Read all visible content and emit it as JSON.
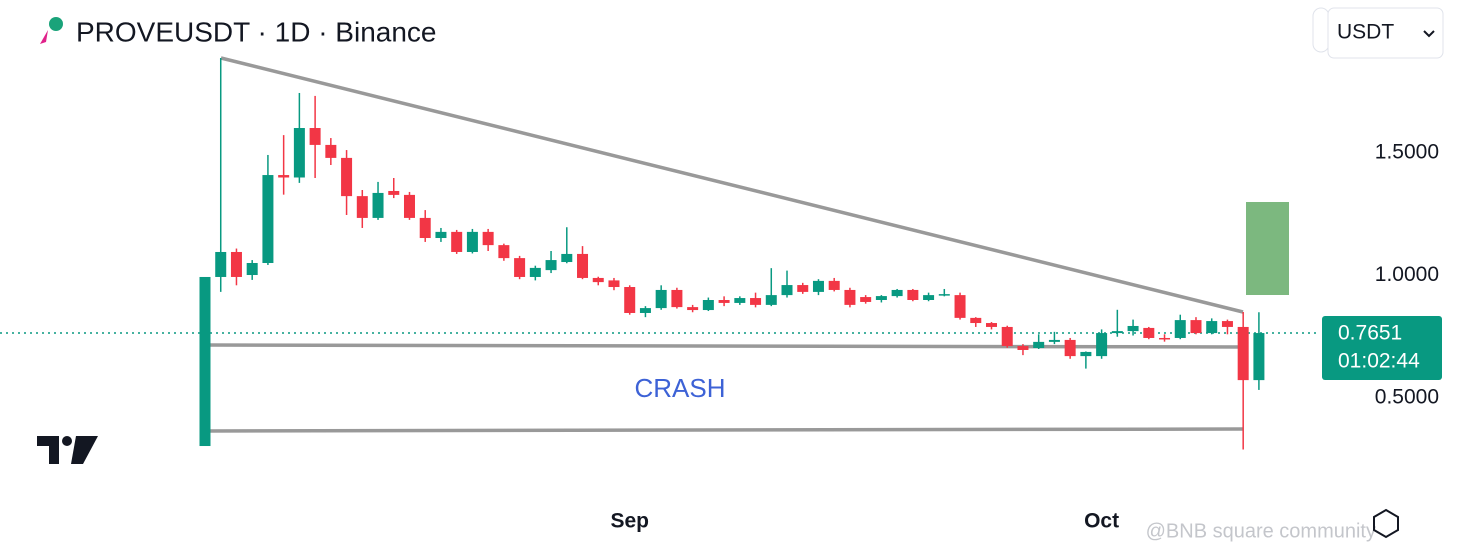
{
  "chart_data": {
    "type": "candlestick",
    "title": "PROVEUSDT · 1D · Binance",
    "currency": "USDT",
    "annotation": "CRASH",
    "last_price": 0.7651,
    "countdown": "01:02:44",
    "watermark": "@BNB square community",
    "up_color": "#089981",
    "down_color": "#f23645",
    "categories": [
      null,
      null,
      null,
      null,
      null,
      null,
      null,
      null,
      null,
      null,
      null,
      null,
      null,
      null,
      null,
      null,
      null,
      null,
      null,
      null,
      null,
      null,
      null,
      null,
      null,
      null,
      null,
      "Sep",
      null,
      null,
      null,
      null,
      null,
      null,
      null,
      null,
      null,
      null,
      null,
      null,
      null,
      null,
      null,
      null,
      null,
      null,
      null,
      null,
      null,
      null,
      null,
      null,
      null,
      null,
      null,
      null,
      null,
      "Oct",
      null,
      null,
      null,
      null,
      null,
      null,
      null,
      null,
      null,
      null
    ],
    "open": [
      0.304,
      0.994,
      1.096,
      1.002,
      1.051,
      1.41,
      1.4,
      1.602,
      1.533,
      1.48,
      1.324,
      1.235,
      1.345,
      1.329,
      1.235,
      1.153,
      1.178,
      1.096,
      1.178,
      1.124,
      1.071,
      0.994,
      1.022,
      1.055,
      1.088,
      0.99,
      0.98,
      0.953,
      0.847,
      0.867,
      0.941,
      0.871,
      0.859,
      0.9,
      0.888,
      0.908,
      0.88,
      0.92,
      0.961,
      0.933,
      0.978,
      0.941,
      0.912,
      0.9,
      0.916,
      0.941,
      0.9,
      0.92,
      0.92,
      0.827,
      0.806,
      0.79,
      0.712,
      0.704,
      0.729,
      0.737,
      0.671,
      0.671,
      0.765,
      0.773,
      0.786,
      0.745,
      0.745,
      0.818,
      0.765,
      0.814,
      0.79,
      0.573
    ],
    "high": [
      0.994,
      1.888,
      1.11,
      1.063,
      1.492,
      1.573,
      1.745,
      1.733,
      1.561,
      1.512,
      1.349,
      1.382,
      1.398,
      1.341,
      1.267,
      1.194,
      1.186,
      1.19,
      1.19,
      1.13,
      1.08,
      1.04,
      1.1,
      1.197,
      1.12,
      0.995,
      0.99,
      0.96,
      0.875,
      0.96,
      0.95,
      0.88,
      0.91,
      0.915,
      0.915,
      0.93,
      1.03,
      1.02,
      0.97,
      0.985,
      0.99,
      0.95,
      0.92,
      0.92,
      0.945,
      0.945,
      0.93,
      0.945,
      0.93,
      0.83,
      0.81,
      0.795,
      0.72,
      0.76,
      0.77,
      0.745,
      0.69,
      0.78,
      0.86,
      0.82,
      0.79,
      0.76,
      0.84,
      0.83,
      0.825,
      0.82,
      0.851,
      0.85
    ],
    "low": [
      0.304,
      0.933,
      0.96,
      0.982,
      1.043,
      1.33,
      1.378,
      1.398,
      1.451,
      1.247,
      1.194,
      1.227,
      1.316,
      1.227,
      1.137,
      1.137,
      1.088,
      1.09,
      1.1,
      1.06,
      0.985,
      0.98,
      1.01,
      1.05,
      0.985,
      0.96,
      0.94,
      0.84,
      0.83,
      0.86,
      0.865,
      0.85,
      0.855,
      0.875,
      0.88,
      0.87,
      0.875,
      0.91,
      0.925,
      0.92,
      0.935,
      0.87,
      0.885,
      0.89,
      0.91,
      0.895,
      0.895,
      0.915,
      0.82,
      0.79,
      0.78,
      0.705,
      0.675,
      0.7,
      0.72,
      0.66,
      0.62,
      0.66,
      0.75,
      0.755,
      0.74,
      0.73,
      0.74,
      0.76,
      0.76,
      0.76,
      0.29,
      0.533
    ],
    "close": [
      0.994,
      1.096,
      0.994,
      1.051,
      1.41,
      1.4,
      1.602,
      1.533,
      1.48,
      1.324,
      1.235,
      1.337,
      1.329,
      1.235,
      1.153,
      1.178,
      1.096,
      1.178,
      1.124,
      1.071,
      0.994,
      1.031,
      1.063,
      1.088,
      0.99,
      0.973,
      0.953,
      0.847,
      0.867,
      0.941,
      0.871,
      0.859,
      0.9,
      0.888,
      0.908,
      0.88,
      0.92,
      0.961,
      0.933,
      0.978,
      0.941,
      0.88,
      0.892,
      0.916,
      0.941,
      0.9,
      0.92,
      0.924,
      0.827,
      0.806,
      0.79,
      0.712,
      0.696,
      0.729,
      0.737,
      0.671,
      0.688,
      0.765,
      0.773,
      0.794,
      0.745,
      0.741,
      0.818,
      0.765,
      0.814,
      0.79,
      0.573,
      0.7651
    ],
    "ylim": [
      0.1,
      2.1
    ],
    "yticks": [
      {
        "value": 0.5,
        "label": "0.5000"
      },
      {
        "value": 1.0,
        "label": "1.0000"
      },
      {
        "value": 1.5,
        "label": "1.5000"
      }
    ]
  }
}
